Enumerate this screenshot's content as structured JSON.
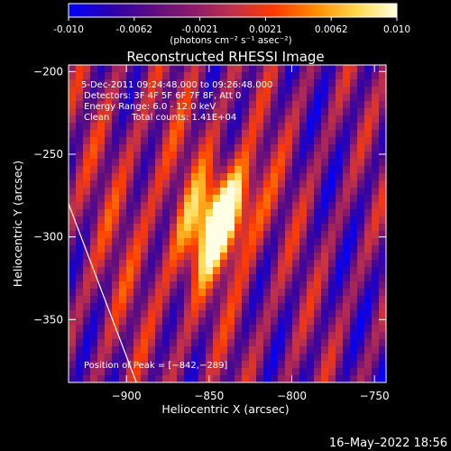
{
  "colorbar": {
    "tick_labels": [
      "-0.010",
      "-0.0062",
      "-0.0021",
      "0.0021",
      "0.0062",
      "0.010"
    ],
    "min": -0.01,
    "max": 0.01,
    "unit_label": "(photons cm⁻² s⁻¹ asec⁻²)",
    "colormap": [
      "#0000ff",
      "#2a00b0",
      "#5a0d82",
      "#8a1a6a",
      "#c0304a",
      "#ff3a00",
      "#ff8a00",
      "#ffd84a",
      "#ffffe6"
    ]
  },
  "chart_data": {
    "type": "heatmap",
    "title": "Reconstructed RHESSI Image",
    "xlabel": "Heliocentric X (arcsec)",
    "ylabel": "Heliocentric Y (arcsec)",
    "xlim": [
      -935,
      -743
    ],
    "ylim": [
      -388,
      -196
    ],
    "x_ticks": [
      -900,
      -850,
      -800,
      -750
    ],
    "x_tick_labels": [
      "−900",
      "−850",
      "−800",
      "−750"
    ],
    "y_ticks": [
      -200,
      -250,
      -300,
      -350
    ],
    "y_tick_labels": [
      "−200",
      "−250",
      "−300",
      "−350"
    ],
    "peak": {
      "x": -842,
      "y": -289
    },
    "limb_line": [
      [
        -935,
        -280
      ],
      [
        -894,
        -388
      ]
    ],
    "grid": false,
    "annotations": {
      "time_range": "5-Dec-2011 09:24:48.000 to 09:26:48.000",
      "detectors": "Detectors: 3F 4F 5F 6F 7F 8F, Att 0",
      "energy_range": "Energy Range: 6.0 - 12.0 keV",
      "clean_label": "Clean",
      "total_counts": "Total counts: 1.41E+04",
      "peak_label": "Position of Peak = [−842,−289]"
    }
  },
  "timestamp": "16–May–2022 18:56"
}
